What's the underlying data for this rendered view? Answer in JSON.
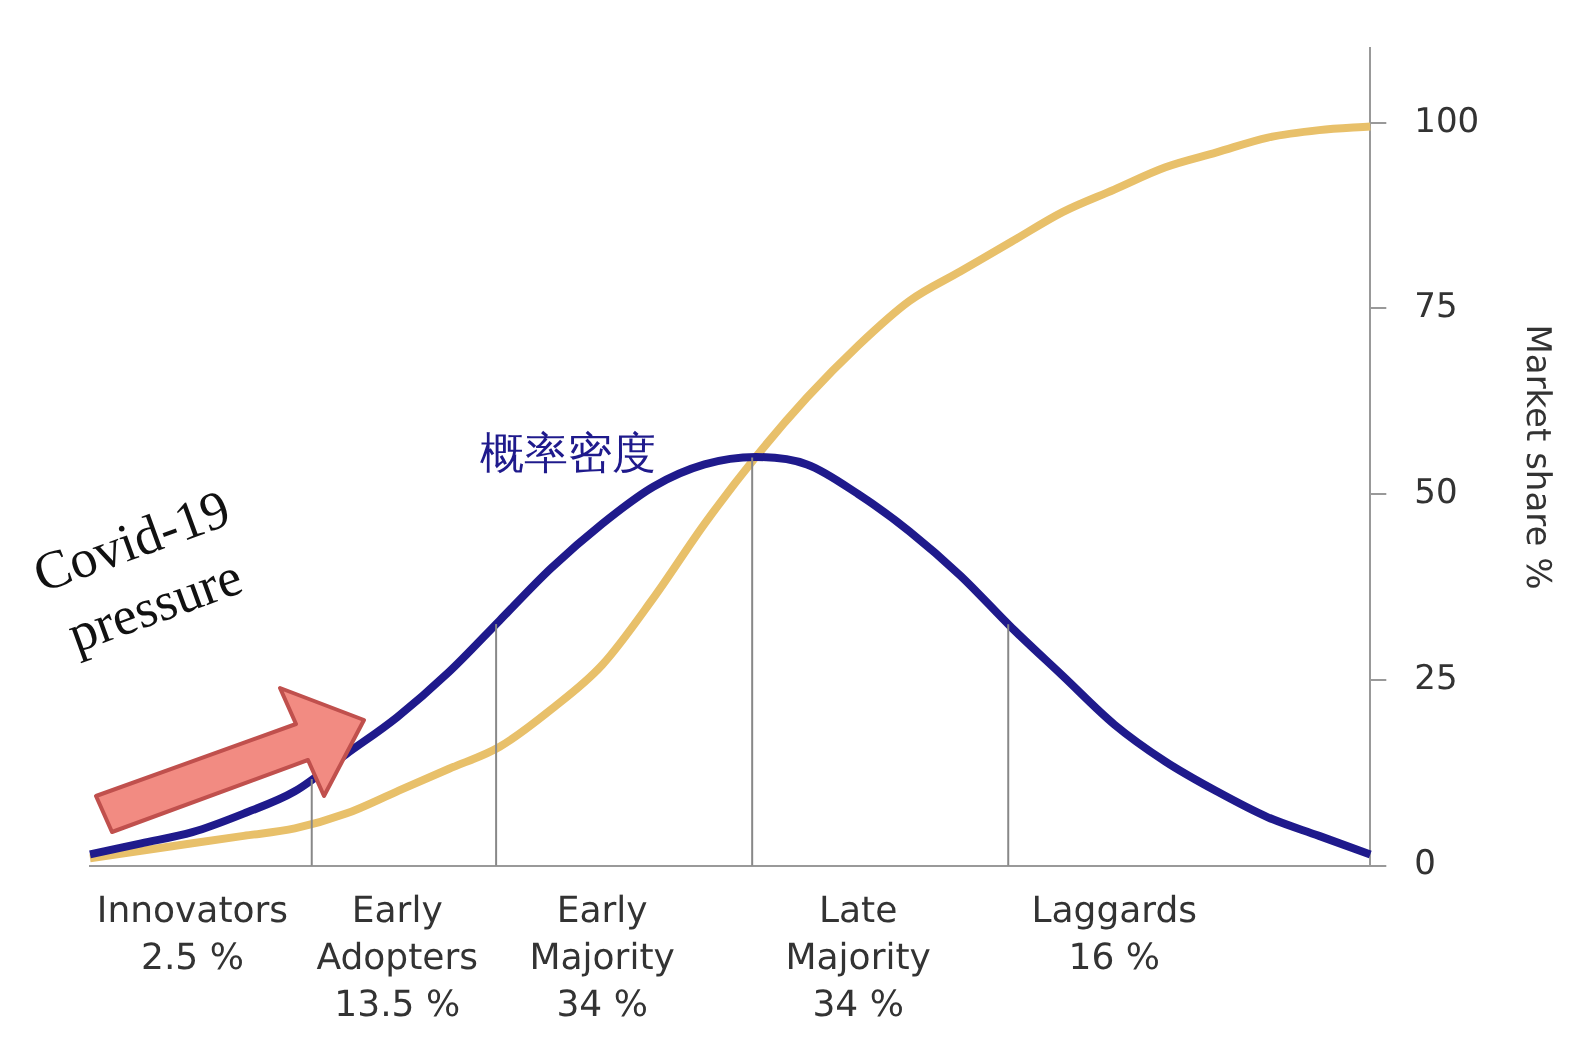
{
  "chart_data": {
    "type": "line",
    "ylabel": "Market share %",
    "ylim": [
      0,
      110
    ],
    "yticks": [
      0,
      25,
      50,
      75,
      100
    ],
    "grid": false,
    "legend": false,
    "marker": "none",
    "line_style": "solid",
    "categories": [
      null,
      null,
      "Innovators\n2.5 %",
      null,
      null,
      null,
      "Early\nAdopters\n13.5 %",
      null,
      null,
      null,
      "Early\nMajority\n34 %",
      null,
      null,
      null,
      null,
      "Late\nMajority\n34 %",
      null,
      null,
      null,
      null,
      "Laggards\n16 %",
      null,
      null,
      null,
      null,
      null
    ],
    "series": [
      {
        "name": "概率密度",
        "color": "#1f1a8c",
        "values": [
          1.5,
          3,
          4.5,
          7,
          10,
          15,
          20,
          26,
          33,
          40,
          46,
          51,
          54,
          55,
          54,
          50,
          45,
          39,
          32,
          25.5,
          19,
          14,
          10,
          6.5,
          4,
          1.5
        ]
      },
      {
        "color": "#e8c06a",
        "values": [
          1,
          2,
          3,
          4,
          5,
          7,
          10,
          13,
          16,
          21,
          27,
          36,
          46,
          55,
          63,
          70,
          76,
          80,
          84,
          88,
          91,
          94,
          96,
          98,
          99,
          99.5
        ]
      }
    ],
    "annotations": [
      "Covid-19\npressure"
    ]
  }
}
